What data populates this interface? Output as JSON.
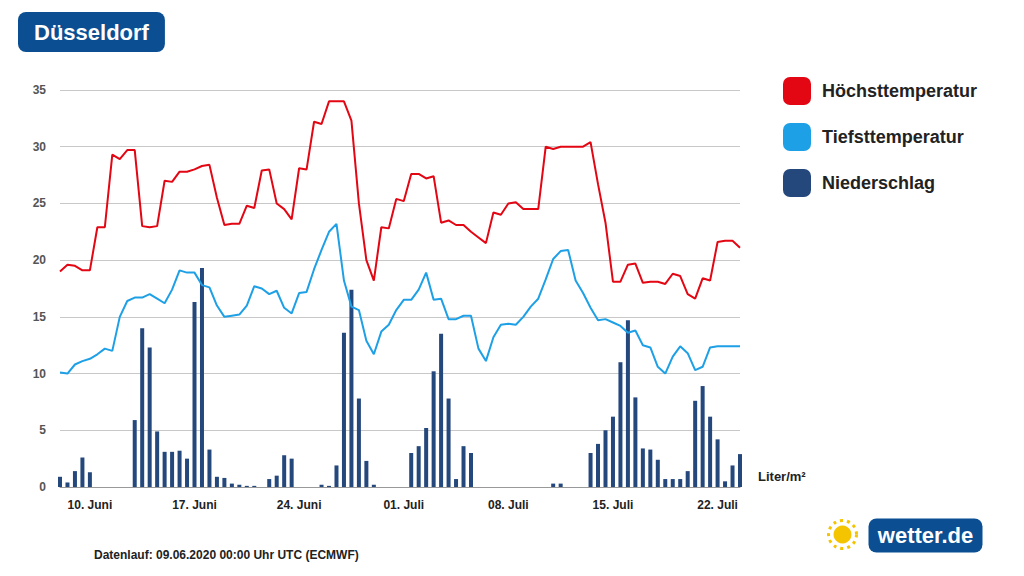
{
  "chart_data": {
    "type": "line",
    "title": "Düsseldorf",
    "unit_label": "Liter/m²",
    "footer": "Datenlauf: 09.06.2020 00:00 Uhr UTC (ECMWF)",
    "logo": "wetter.de",
    "categories": [
      null,
      null,
      null,
      null,
      "10. Juni",
      null,
      null,
      null,
      null,
      null,
      null,
      null,
      null,
      null,
      null,
      null,
      null,
      null,
      "17. Juni",
      null,
      null,
      null,
      null,
      null,
      null,
      null,
      null,
      null,
      null,
      null,
      null,
      null,
      "24. Juni",
      null,
      null,
      null,
      null,
      null,
      null,
      null,
      null,
      null,
      null,
      null,
      null,
      null,
      "01. Juli",
      null,
      null,
      null,
      null,
      null,
      null,
      null,
      null,
      null,
      null,
      null,
      null,
      null,
      "08. Juli",
      null,
      null,
      null,
      null,
      null,
      null,
      null,
      null,
      null,
      null,
      null,
      null,
      null,
      "15. Juli",
      null,
      null,
      null,
      null,
      null,
      null,
      null,
      null,
      null,
      null,
      null,
      null,
      null,
      "22. Juli",
      null,
      null,
      null
    ],
    "series": [
      {
        "name": "Höchsttemperatur",
        "type": "line",
        "color": "#e30613",
        "values": [
          19,
          19.6,
          19.5,
          19.1,
          19.1,
          22.9,
          22.9,
          29.3,
          28.9,
          29.7,
          29.7,
          23,
          22.9,
          23,
          27,
          26.9,
          27.8,
          27.8,
          28,
          28.3,
          28.4,
          25.5,
          23.1,
          23.2,
          23.2,
          24.8,
          24.6,
          27.9,
          28,
          25,
          24.5,
          23.6,
          28.1,
          28,
          32.2,
          32,
          34,
          34,
          34,
          32.3,
          25,
          20,
          18.2,
          22.9,
          22.8,
          25.4,
          25.2,
          27.6,
          27.6,
          27.2,
          27.4,
          23.3,
          23.5,
          23.1,
          23.1,
          22.5,
          22,
          21.5,
          24.2,
          24,
          25,
          25.1,
          24.5,
          24.5,
          24.5,
          30,
          29.8,
          30,
          30,
          30,
          30,
          30.4,
          26.7,
          23.3,
          18.1,
          18.1,
          19.6,
          19.7,
          18,
          18.1,
          18.1,
          17.9,
          18.8,
          18.6,
          17,
          16.6,
          18.4,
          18.2,
          21.6,
          21.7,
          21.7,
          21.1
        ]
      },
      {
        "name": "Tiefsttemperatur",
        "type": "line",
        "color": "#1ea0e6",
        "values": [
          10.1,
          10,
          10.8,
          11.1,
          11.3,
          11.7,
          12.2,
          12,
          15,
          16.4,
          16.7,
          16.7,
          17,
          16.6,
          16.2,
          17.4,
          19.1,
          18.9,
          18.9,
          17.8,
          17.6,
          16,
          15,
          15.1,
          15.2,
          16,
          17.7,
          17.5,
          17,
          17.3,
          15.8,
          15.3,
          17.1,
          17.2,
          19.2,
          20.9,
          22.5,
          23.2,
          18.2,
          15.9,
          15.6,
          12.9,
          11.7,
          13.7,
          14.3,
          15.6,
          16.5,
          16.5,
          17.4,
          18.9,
          16.5,
          16.6,
          14.8,
          14.8,
          15.1,
          15.1,
          12.2,
          11.1,
          13.2,
          14.3,
          14.4,
          14.3,
          15,
          15.9,
          16.6,
          18.3,
          20.1,
          20.8,
          20.9,
          18.2,
          17.1,
          15.8,
          14.7,
          14.8,
          14.5,
          14.2,
          13.6,
          13.8,
          12.5,
          12.3,
          10.6,
          10,
          11.5,
          12.4,
          11.8,
          10.3,
          10.6,
          12.3,
          12.4,
          12.4,
          12.4,
          12.4
        ]
      },
      {
        "name": "Niederschlag",
        "type": "bar",
        "color": "#24477c",
        "values": [
          0.9,
          0.4,
          1.4,
          2.6,
          1.3,
          0,
          0,
          0,
          0,
          0,
          5.9,
          14,
          12.3,
          4.9,
          3.1,
          3.1,
          3.2,
          2.5,
          16.3,
          19.3,
          3.3,
          0.9,
          0.8,
          0.3,
          0.2,
          0.1,
          0.1,
          0,
          0.7,
          1,
          2.8,
          2.5,
          0,
          0,
          0,
          0.2,
          0.1,
          1.9,
          13.6,
          17.4,
          7.8,
          2.3,
          0.2,
          0,
          0,
          0,
          0,
          3,
          3.6,
          5.2,
          10.2,
          13.5,
          7.8,
          0.7,
          3.6,
          3,
          0,
          0,
          0,
          0,
          0,
          0,
          0,
          0,
          0,
          0,
          0.3,
          0.3,
          0,
          0,
          0,
          3,
          3.8,
          5,
          6.2,
          11,
          14.7,
          7.9,
          3.4,
          3.3,
          2.4,
          0.7,
          0.7,
          0.7,
          1.4,
          7.6,
          8.9,
          6.2,
          4.2,
          0.5,
          1.9,
          2.9
        ]
      }
    ],
    "ylim": [
      0,
      35
    ],
    "yticks": [
      0,
      5,
      10,
      15,
      20,
      25,
      30,
      35
    ],
    "grid": true,
    "legend": "right"
  }
}
